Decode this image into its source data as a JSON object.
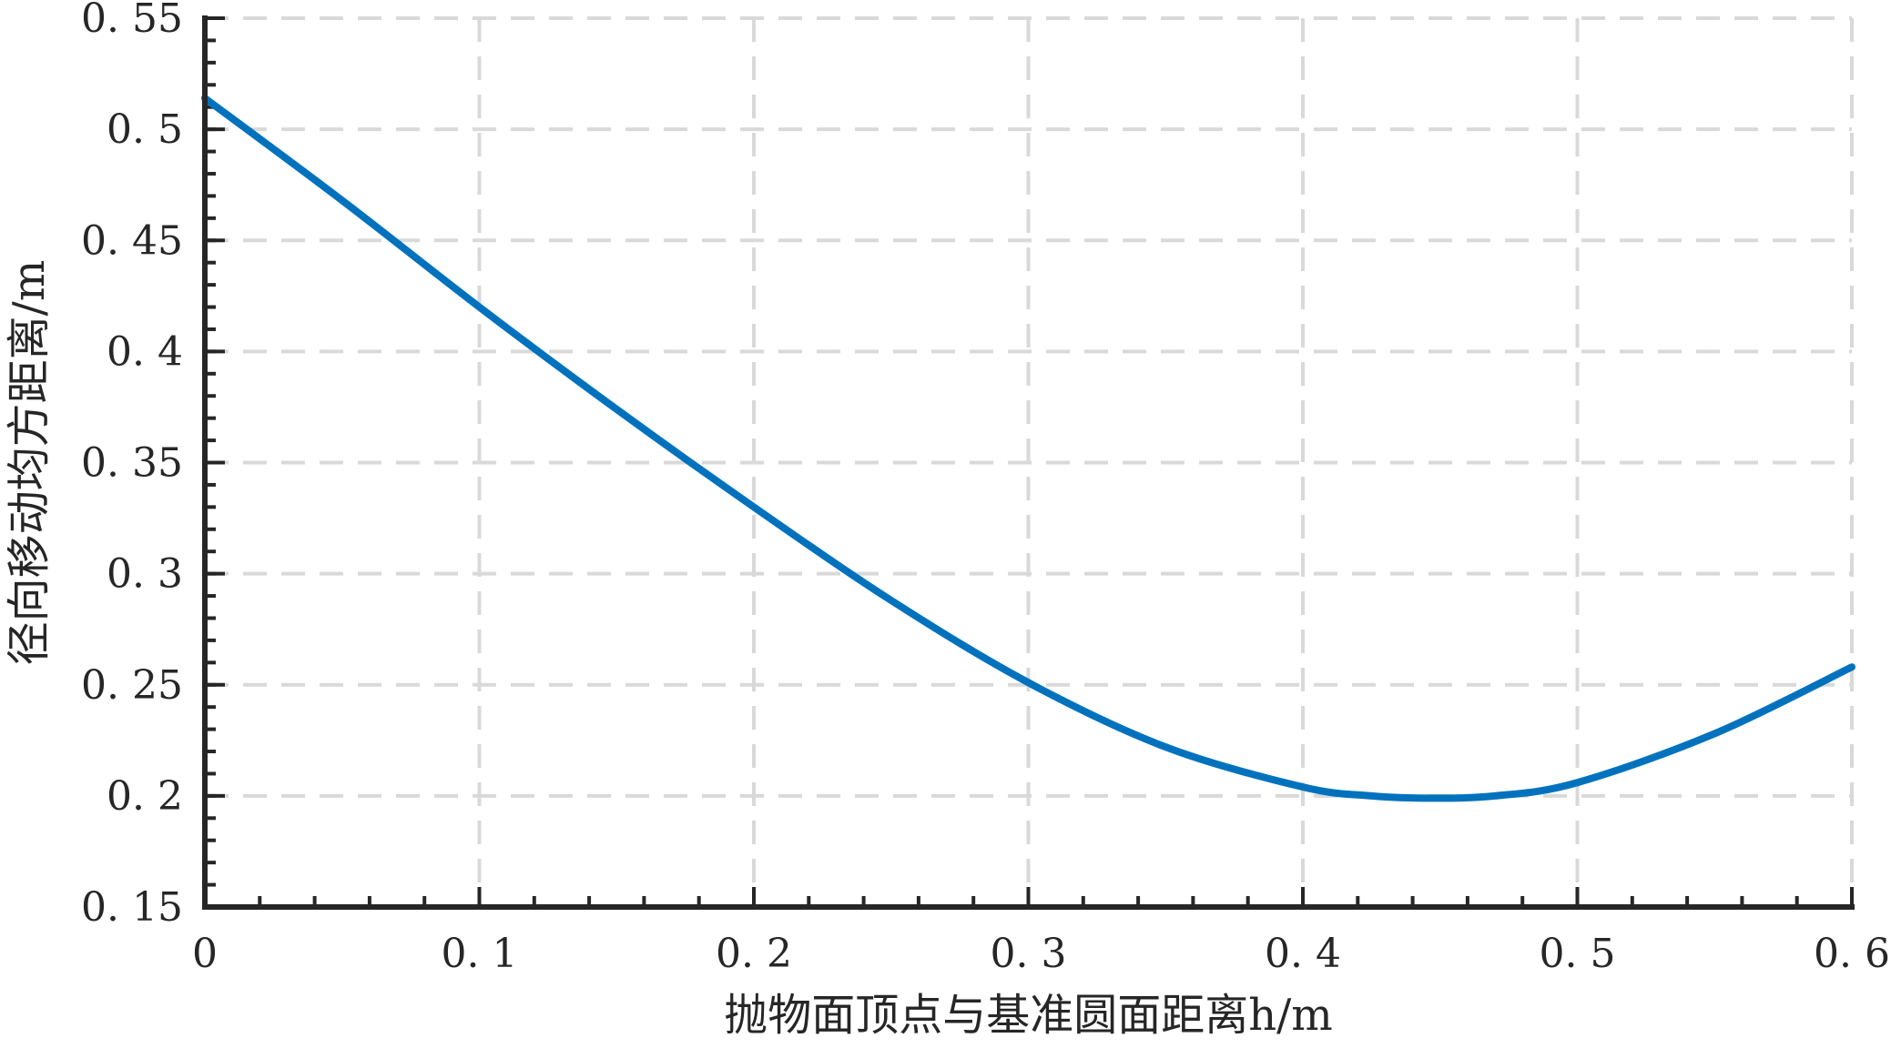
{
  "chart_data": {
    "type": "line",
    "title": "",
    "xlabel": "抛物面顶点与基准圆面距离h/m",
    "ylabel": "径向移动均方距离/m",
    "xlim": [
      0,
      0.6
    ],
    "ylim": [
      0.15,
      0.55
    ],
    "x_ticks": [
      0,
      0.1,
      0.2,
      0.3,
      0.4,
      0.5,
      0.6
    ],
    "x_tick_labels": [
      "0",
      "0. 1",
      "0. 2",
      "0. 3",
      "0. 4",
      "0. 5",
      "0. 6"
    ],
    "y_ticks": [
      0.15,
      0.2,
      0.25,
      0.3,
      0.35,
      0.4,
      0.45,
      0.5,
      0.55
    ],
    "y_tick_labels": [
      "0. 15",
      "0. 2",
      "0. 25",
      "0. 3",
      "0. 35",
      "0. 4",
      "0. 45",
      "0. 5",
      "0. 55"
    ],
    "grid": true,
    "grid_style": "dashed",
    "series": [
      {
        "color": "#0072BD",
        "x": [
          0,
          0.05,
          0.1,
          0.15,
          0.2,
          0.25,
          0.3,
          0.35,
          0.4,
          0.425,
          0.445,
          0.47,
          0.5,
          0.55,
          0.6
        ],
        "y": [
          0.514,
          0.468,
          0.42,
          0.374,
          0.33,
          0.288,
          0.251,
          0.222,
          0.204,
          0.2,
          0.199,
          0.2,
          0.206,
          0.228,
          0.258
        ]
      }
    ]
  }
}
